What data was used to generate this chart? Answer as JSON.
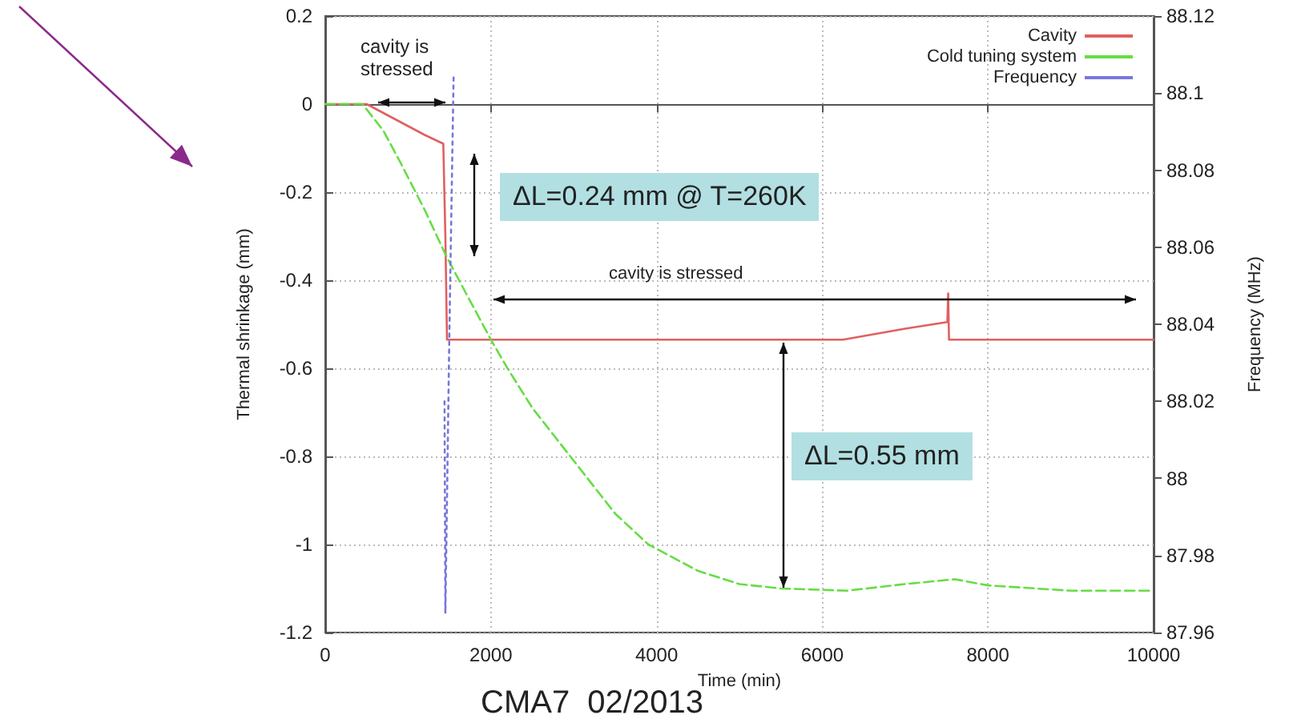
{
  "chart_data": {
    "type": "line",
    "xlabel": "Time (min)",
    "ylabel": "Thermal shrinkage (mm)",
    "y2label": "Frequency (MHz)",
    "series": [
      {
        "name": "Cavity",
        "color": "#e06060",
        "line_style": "solid",
        "x": [
          0,
          500,
          700,
          1000,
          1200,
          1425,
          1450,
          1470,
          2000,
          4000,
          6250,
          7000,
          7510,
          7520,
          7530,
          8000,
          10000
        ],
        "values": [
          0,
          0,
          -0.02,
          -0.05,
          -0.07,
          -0.09,
          -0.3,
          -0.535,
          -0.535,
          -0.535,
          -0.535,
          -0.51,
          -0.495,
          -0.43,
          -0.535,
          -0.535,
          -0.535
        ]
      },
      {
        "name": "Cold tuning system",
        "color": "#66dd44",
        "line_style": "dashed",
        "x": [
          0,
          450,
          700,
          900,
          1200,
          1460,
          1700,
          2000,
          2200,
          2500,
          3000,
          3500,
          3900,
          4500,
          5000,
          5500,
          6300,
          7000,
          7600,
          8000,
          9000,
          10000
        ],
        "values": [
          0,
          0,
          -0.06,
          -0.13,
          -0.24,
          -0.345,
          -0.43,
          -0.535,
          -0.6,
          -0.69,
          -0.81,
          -0.93,
          -1.0,
          -1.06,
          -1.09,
          -1.1,
          -1.105,
          -1.09,
          -1.079,
          -1.093,
          -1.105,
          -1.105
        ]
      },
      {
        "name": "Frequency",
        "color": "#7777dd",
        "line_style": "dotted",
        "axis": "y2",
        "x": [
          1440,
          1450,
          1500,
          1550
        ],
        "values": [
          88.02,
          87.965,
          88.04,
          88.105
        ]
      }
    ],
    "xlim": [
      0,
      10000
    ],
    "xticks": [
      0,
      2000,
      4000,
      6000,
      8000,
      10000
    ],
    "ylim": [
      -1.2,
      0.2
    ],
    "yticks": [
      -1.2,
      -1,
      -0.8,
      -0.6,
      -0.4,
      -0.2,
      0,
      0.2
    ],
    "y2lim": [
      87.96,
      88.12
    ],
    "y2ticks": [
      87.96,
      87.98,
      88,
      88.02,
      88.04,
      88.06,
      88.08,
      88.1,
      88.12
    ],
    "grid": true,
    "legend": "top right",
    "marker": "none",
    "annotations": [
      "cavity is stressed",
      "ΔL=0.24 mm @ T=260K",
      "cavity is stressed",
      "ΔL=0.55 mm",
      "CMA7  02/2013"
    ]
  }
}
